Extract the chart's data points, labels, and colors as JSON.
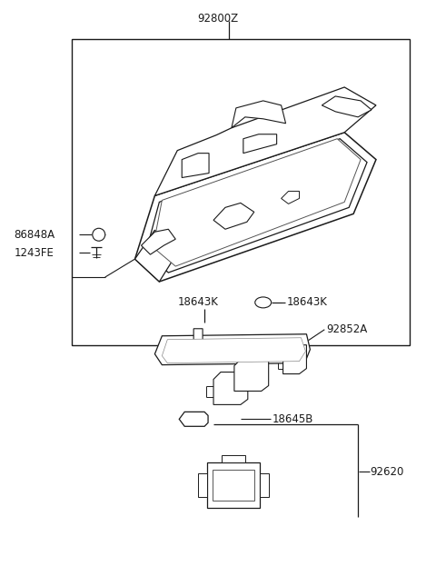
{
  "bg_color": "#ffffff",
  "fig_width": 4.8,
  "fig_height": 6.23,
  "dpi": 100,
  "font_size": 8.5,
  "line_color": "#1a1a1a",
  "text_color": "#1a1a1a",
  "title": "92800Z",
  "label_86848A": "86848A",
  "label_1243FE": "1243FE",
  "label_18643K_l": "18643K",
  "label_18643K_r": "18643K",
  "label_92852A": "92852A",
  "label_18645B": "18645B",
  "label_92620": "92620"
}
